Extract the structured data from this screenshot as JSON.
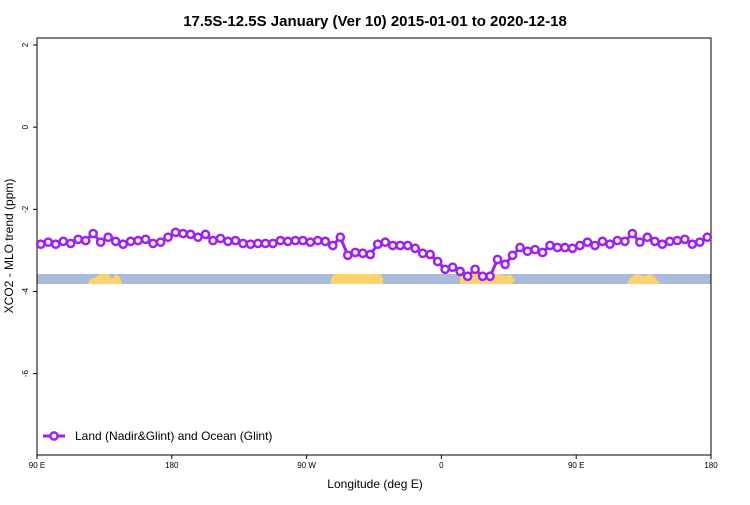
{
  "chart_data": {
    "type": "line",
    "title": "17.5S-12.5S January (Ver 10)   2015-01-01 to 2020-12-18",
    "x_label": "Longitude (deg E)",
    "y_label": "XCO2 - MLO trend (ppm)",
    "x": [
      92.5,
      97.5,
      102.5,
      107.5,
      112.5,
      117.5,
      122.5,
      127.5,
      132.5,
      137.5,
      142.5,
      147.5,
      152.5,
      157.5,
      162.5,
      167.5,
      172.5,
      177.5,
      182.5,
      187.5,
      192.5,
      197.5,
      202.5,
      207.5,
      212.5,
      217.5,
      222.5,
      227.5,
      232.5,
      237.5,
      242.5,
      247.5,
      252.5,
      257.5,
      262.5,
      267.5,
      272.5,
      277.5,
      282.5,
      287.5,
      292.5,
      297.5,
      302.5,
      307.5,
      312.5,
      317.5,
      322.5,
      327.5,
      332.5,
      337.5,
      342.5,
      347.5,
      352.5,
      357.5,
      362.5,
      367.5,
      372.5,
      377.5,
      382.5,
      387.5,
      392.5,
      397.5,
      402.5,
      407.5,
      412.5,
      417.5,
      422.5,
      427.5,
      432.5,
      437.5,
      442.5,
      447.5,
      452.5,
      457.5,
      462.5,
      467.5,
      472.5,
      477.5,
      482.5,
      487.5,
      492.5,
      497.5,
      502.5,
      507.5,
      512.5,
      517.5,
      522.5,
      527.5,
      532.5,
      537.5
    ],
    "series": [
      {
        "name": "Land (Nadir&Glint) and Ocean (Glint)",
        "color": "#a020f0",
        "values": [
          -2.85,
          -2.8,
          -2.85,
          -2.78,
          -2.83,
          -2.73,
          -2.76,
          -2.59,
          -2.8,
          -2.68,
          -2.78,
          -2.85,
          -2.78,
          -2.76,
          -2.73,
          -2.83,
          -2.8,
          -2.68,
          -2.56,
          -2.59,
          -2.61,
          -2.68,
          -2.61,
          -2.76,
          -2.71,
          -2.78,
          -2.76,
          -2.83,
          -2.85,
          -2.83,
          -2.83,
          -2.83,
          -2.76,
          -2.78,
          -2.76,
          -2.76,
          -2.8,
          -2.76,
          -2.78,
          -2.88,
          -2.68,
          -3.12,
          -3.05,
          -3.07,
          -3.1,
          -2.85,
          -2.8,
          -2.88,
          -2.88,
          -2.88,
          -2.95,
          -3.07,
          -3.1,
          -3.27,
          -3.46,
          -3.41,
          -3.51,
          -3.63,
          -3.46,
          -3.63,
          -3.63,
          -3.22,
          -3.34,
          -3.12,
          -2.93,
          -3.02,
          -2.98,
          -3.05,
          -2.88,
          -2.93,
          -2.93,
          -2.95,
          -2.88,
          -2.8,
          -2.88,
          -2.78,
          -2.85,
          -2.76,
          -2.78,
          -2.59,
          -2.8,
          -2.68,
          -2.78,
          -2.85,
          -2.78,
          -2.76,
          -2.73,
          -2.85,
          -2.8,
          -2.68
        ]
      }
    ],
    "xlim": [
      90,
      540
    ],
    "xticks": [
      {
        "value": 90,
        "label": "90 E"
      },
      180,
      {
        "value": 270,
        "label": "90 W"
      },
      {
        "value": 360,
        "label": "0"
      },
      {
        "value": 450,
        "label": "90 E"
      },
      {
        "value": 540,
        "label": "180"
      }
    ],
    "ylim": [
      -7.98,
      2.17
    ],
    "yticks": [
      2,
      0,
      -2,
      -4,
      -6
    ],
    "legend": "bottom-left"
  }
}
